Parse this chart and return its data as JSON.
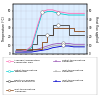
{
  "background_color": "#ffffff",
  "plot_bg_color": "#ddeeff",
  "ylabel_left": "Temperature (°C)",
  "ylabel_right": "Heat flux applied",
  "x_labels": [
    "6h47'",
    "6h51'",
    "6h55'",
    "6h59'",
    "7h03'",
    "7h07'",
    "7h11'",
    "7h15'",
    "7h19'",
    "7h23'",
    "7h27'",
    "7h31'",
    "7h35'",
    "7h39'"
  ],
  "yticks": [
    0,
    10,
    20,
    30,
    40,
    50
  ],
  "ylim": [
    0,
    58
  ],
  "y_pink": [
    3,
    3,
    4,
    9,
    30,
    49,
    51,
    51,
    49,
    48,
    47,
    47,
    47,
    47
  ],
  "y_cyan": [
    3,
    3,
    4,
    7,
    27,
    47,
    49,
    49,
    47,
    46,
    45,
    45,
    45,
    45
  ],
  "y_brown_step": [
    6,
    6,
    6,
    6,
    6,
    14,
    22,
    30,
    30,
    30,
    30,
    27,
    27,
    27
  ],
  "y_dark_step": [
    4,
    4,
    4,
    11,
    22,
    22,
    22,
    33,
    33,
    33,
    22,
    22,
    22,
    22
  ],
  "y_purple": [
    3,
    3,
    3,
    4,
    5,
    7,
    9,
    11,
    12,
    12,
    12,
    11,
    11,
    11
  ],
  "y_gray": [
    2,
    2,
    2,
    3,
    4,
    5,
    7,
    9,
    10,
    10,
    10,
    9,
    9,
    9
  ],
  "y_blue": [
    2,
    2,
    2,
    2,
    3,
    4,
    5,
    7,
    8,
    9,
    9,
    8,
    8,
    8
  ],
  "color_pink": "#ff69b4",
  "color_cyan": "#00ced1",
  "color_brown": "#8b4513",
  "color_dark": "#404040",
  "color_purple": "#9b59b6",
  "color_gray": "#aaaaaa",
  "color_blue": "#0000cc",
  "lw": 0.6,
  "legend_fontsize": 1.7,
  "tick_fontsize": 2.0,
  "label_fontsize": 2.2
}
